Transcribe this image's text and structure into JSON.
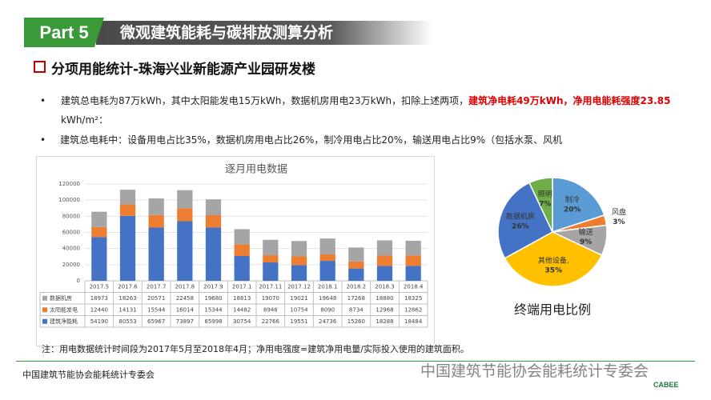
{
  "header": {
    "part": "Part 5",
    "title": "微观建筑能耗与碳排放测算分析"
  },
  "section": "分项用能统计-珠海兴业新能源产业园研发楼",
  "bullets": [
    {
      "text": "建筑总电耗为87万kWh，其中太阳能发电15万kWh，数据机房用电23万kWh，扣除上述两项，",
      "highlight": "建筑净电耗49万kWh，净用电能耗强度23.85",
      "tail": " kWh/m²："
    },
    {
      "text": "建筑总电耗中：设备用电占比35%，数据机房用电占比26%，制冷用电占比20%，输送用电占比9%（包括水泵、风机"
    }
  ],
  "chart_data": [
    {
      "type": "bar",
      "stacked": true,
      "title": "逐月用电数据",
      "categories": [
        "2017.5",
        "2017.6",
        "2017.7",
        "2017.8",
        "2017.9",
        "2017.1",
        "2017.11",
        "2017.12",
        "2018.1",
        "2018.2",
        "2018.3",
        "2018.4"
      ],
      "series": [
        {
          "name": "数据机房",
          "color": "#a5a5a5",
          "values": [
            18973,
            18263,
            20571,
            22458,
            19680,
            18813,
            19070,
            19021,
            19648,
            17268,
            18880,
            18325
          ]
        },
        {
          "name": "太阳能发电",
          "color": "#ed7d31",
          "values": [
            12440,
            14131,
            15544,
            16014,
            15344,
            14482,
            8948,
            10754,
            8090,
            8734,
            12968,
            12862
          ]
        },
        {
          "name": "建筑净能耗",
          "color": "#4472c4",
          "values": [
            54190,
            80553,
            65967,
            73897,
            65998,
            30754,
            22766,
            19551,
            24736,
            15260,
            18288,
            18484
          ]
        }
      ],
      "ylim": [
        0,
        120000
      ],
      "yticks": [
        0,
        20000,
        40000,
        60000,
        80000,
        100000,
        120000
      ],
      "grid": true
    },
    {
      "type": "pie",
      "title": "终端用电比例",
      "categories": [
        "制冷",
        "风盘",
        "输送",
        "其他设备,",
        "数据机房",
        "照明"
      ],
      "values": [
        20,
        3,
        9,
        35,
        26,
        7
      ],
      "value_labels": [
        "20%",
        "3%",
        "9%",
        "35%",
        "26%",
        "7%"
      ],
      "colors": [
        "#5b9bd5",
        "#ed7d31",
        "#a5a5a5",
        "#ffc000",
        "#4472c4",
        "#70ad47"
      ]
    }
  ],
  "note": "注：用电数据统计时间段为2017年5月至2018年4月；净用电强度=建筑净用电量/实际投入使用的建筑面积。",
  "footer": "中国建筑节能协会能耗统计专委会",
  "watermark": {
    "text": "中国建筑节能协会能耗统计专委会",
    "logo": "CABEE"
  }
}
